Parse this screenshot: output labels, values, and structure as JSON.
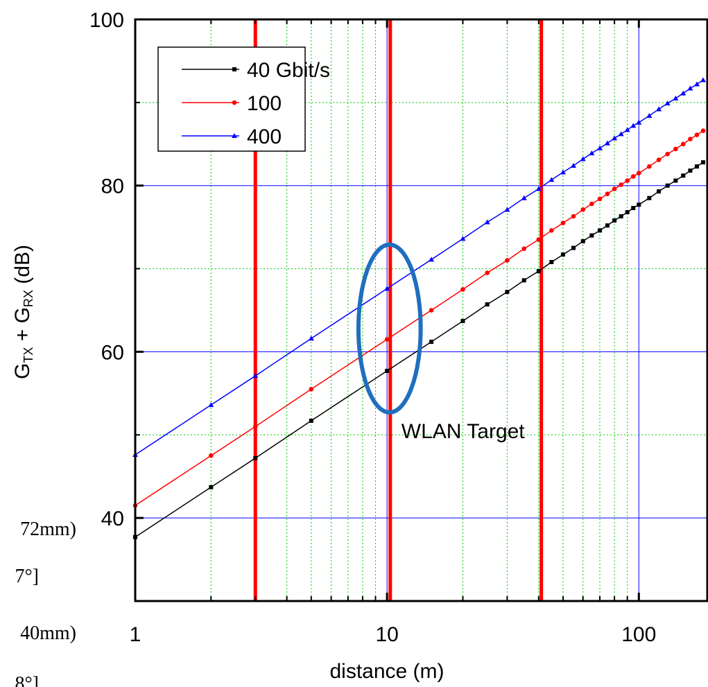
{
  "chart_data": {
    "type": "line",
    "xlabel": "distance (m)",
    "ylabel": [
      "G",
      "TX",
      " + G",
      "RX",
      " (dB)"
    ],
    "xscale": "log",
    "xlim": [
      1,
      187
    ],
    "ylim": [
      30,
      100
    ],
    "xticks": [
      1,
      10,
      100
    ],
    "yticks": [
      40,
      60,
      80,
      100
    ],
    "xticks_minor": [
      2,
      3,
      4,
      5,
      6,
      7,
      8,
      9,
      20,
      30,
      40,
      50,
      60,
      70,
      80,
      90
    ],
    "yticks_minor": [
      50,
      70,
      90
    ],
    "grid": true,
    "grid_color": "#0000ff",
    "minor_grid": true,
    "minor_grid_color": "#00cc00",
    "legend": "upper left",
    "x": [
      1,
      2,
      3,
      5,
      10,
      15,
      20,
      25,
      30,
      35,
      40,
      45,
      50,
      55,
      60,
      65,
      70,
      75,
      80,
      85,
      90,
      95,
      100,
      110,
      120,
      130,
      140,
      150,
      160,
      170,
      180
    ],
    "series": [
      {
        "name": "40 Gbit/s",
        "color": "#000000",
        "marker": "square",
        "values": [
          37.7,
          43.7,
          47.2,
          51.7,
          57.7,
          61.2,
          63.7,
          65.7,
          67.2,
          68.6,
          69.7,
          70.8,
          71.7,
          72.5,
          73.3,
          74.0,
          74.6,
          75.2,
          75.8,
          76.3,
          76.8,
          77.3,
          77.7,
          78.5,
          79.3,
          80.0,
          80.6,
          81.2,
          81.8,
          82.3,
          82.8
        ]
      },
      {
        "name": "100",
        "color": "#ff0000",
        "marker": "circle",
        "values": [
          41.5,
          47.5,
          51.0,
          55.5,
          61.5,
          65.0,
          67.5,
          69.5,
          71.0,
          72.4,
          73.5,
          74.6,
          75.5,
          76.3,
          77.1,
          77.8,
          78.4,
          79.0,
          79.6,
          80.1,
          80.6,
          81.1,
          81.5,
          82.3,
          83.1,
          83.8,
          84.4,
          85.0,
          85.6,
          86.1,
          86.6
        ]
      },
      {
        "name": "400",
        "color": "#0000ff",
        "marker": "triangle",
        "values": [
          47.6,
          53.6,
          57.1,
          61.6,
          67.6,
          71.1,
          73.6,
          75.6,
          77.1,
          78.5,
          79.6,
          80.7,
          81.6,
          82.4,
          83.2,
          83.9,
          84.5,
          85.1,
          85.7,
          86.2,
          86.7,
          87.2,
          87.6,
          88.4,
          89.2,
          89.9,
          90.5,
          91.1,
          91.7,
          92.2,
          92.7
        ]
      }
    ],
    "reference_lines": {
      "x": [
        3.0,
        10.3,
        41
      ],
      "color": "#ff0000"
    },
    "ellipse": {
      "xrange": [
        7.7,
        13.6
      ],
      "yrange": [
        52.7,
        72.9
      ],
      "color": "#1f6fbf"
    },
    "annotation": {
      "text": "WLAN Target",
      "x": 11.4,
      "y": 49.6
    },
    "clipped_texts": [
      "72mm)",
      "7°]",
      "40mm)",
      "8°]"
    ]
  }
}
